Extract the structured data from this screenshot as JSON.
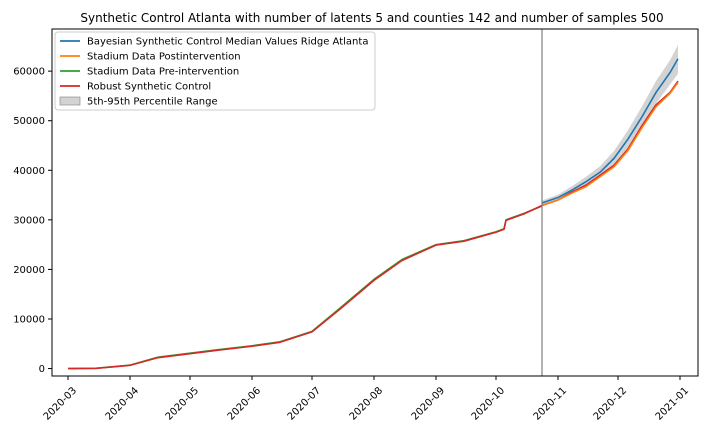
{
  "chart_data": {
    "type": "line",
    "title": "Synthetic Control Atlanta with number of latents 5 and counties 142 and number of samples 500",
    "xlabel": "",
    "ylabel": "",
    "x_range": [
      "2020-02-22",
      "2021-01-10"
    ],
    "ylim": [
      -1500,
      68500
    ],
    "grid": false,
    "legend_position": "top-left",
    "x_ticks": [
      "2020-03",
      "2020-04",
      "2020-05",
      "2020-06",
      "2020-07",
      "2020-08",
      "2020-09",
      "2020-10",
      "2020-11",
      "2020-12",
      "2021-01"
    ],
    "x_tick_dates": [
      "2020-03-01",
      "2020-04-01",
      "2020-05-01",
      "2020-06-01",
      "2020-07-01",
      "2020-08-01",
      "2020-09-01",
      "2020-10-01",
      "2020-11-01",
      "2020-12-01",
      "2021-01-01"
    ],
    "y_ticks": [
      0,
      10000,
      20000,
      30000,
      40000,
      50000,
      60000
    ],
    "intervention_date": "2020-10-24",
    "series": [
      {
        "name": "Bayesian Synthetic Control Median Values Ridge Atlanta",
        "color": "#1f77b4",
        "x": [
          "2020-10-24",
          "2020-11-01",
          "2020-11-08",
          "2020-11-15",
          "2020-11-22",
          "2020-11-29",
          "2020-12-06",
          "2020-12-13",
          "2020-12-20",
          "2020-12-27",
          "2020-12-31"
        ],
        "y": [
          33400,
          34500,
          36000,
          37700,
          39600,
          42400,
          46300,
          50800,
          55700,
          59700,
          62500
        ]
      },
      {
        "name": "Stadium Data Postintervention",
        "color": "#ff7f0e",
        "x": [
          "2020-10-24",
          "2020-11-01",
          "2020-11-08",
          "2020-11-15",
          "2020-11-22",
          "2020-11-29",
          "2020-12-06",
          "2020-12-13",
          "2020-12-20",
          "2020-12-27",
          "2020-12-31"
        ],
        "y": [
          32900,
          34000,
          35400,
          36700,
          38700,
          40700,
          44000,
          48600,
          52800,
          55500,
          57700
        ]
      },
      {
        "name": "Stadium Data Pre-intervention",
        "color": "#2ca02c",
        "x": [
          "2020-03-01",
          "2020-03-15",
          "2020-04-01",
          "2020-04-15",
          "2020-05-01",
          "2020-05-15",
          "2020-06-01",
          "2020-06-15",
          "2020-07-01",
          "2020-07-15",
          "2020-08-01",
          "2020-08-15",
          "2020-09-01",
          "2020-09-15",
          "2020-10-01",
          "2020-10-05",
          "2020-10-06",
          "2020-10-15",
          "2020-10-24"
        ],
        "y": [
          0,
          50,
          700,
          2300,
          3100,
          3800,
          4600,
          5400,
          7500,
          12200,
          18000,
          22000,
          25000,
          25800,
          27600,
          28200,
          30000,
          31300,
          32800
        ]
      },
      {
        "name": "Robust Synthetic Control",
        "color": "#d62728",
        "x": [
          "2020-03-01",
          "2020-03-15",
          "2020-04-01",
          "2020-04-15",
          "2020-05-01",
          "2020-05-15",
          "2020-06-01",
          "2020-06-15",
          "2020-07-01",
          "2020-07-15",
          "2020-08-01",
          "2020-08-15",
          "2020-09-01",
          "2020-09-15",
          "2020-10-01",
          "2020-10-05",
          "2020-10-06",
          "2020-10-15",
          "2020-10-24",
          "2020-11-01",
          "2020-11-08",
          "2020-11-15",
          "2020-11-22",
          "2020-11-29",
          "2020-12-06",
          "2020-12-13",
          "2020-12-20",
          "2020-12-27",
          "2020-12-31"
        ],
        "y": [
          0,
          50,
          650,
          2200,
          3000,
          3700,
          4500,
          5300,
          7400,
          12000,
          17800,
          21800,
          24900,
          25700,
          27500,
          28100,
          29900,
          31200,
          32900,
          34000,
          35600,
          37000,
          39000,
          41000,
          44300,
          49000,
          53200,
          55700,
          58000
        ]
      }
    ],
    "band": {
      "name": "5th-95th Percentile Range",
      "color": "#808080",
      "x": [
        "2020-10-24",
        "2020-11-01",
        "2020-11-08",
        "2020-11-15",
        "2020-11-22",
        "2020-11-29",
        "2020-12-06",
        "2020-12-13",
        "2020-12-20",
        "2020-12-27",
        "2020-12-31"
      ],
      "lower": [
        33000,
        34000,
        35300,
        36800,
        38500,
        41000,
        44500,
        48800,
        53500,
        57300,
        59500
      ],
      "upper": [
        33900,
        35100,
        36800,
        38700,
        40800,
        43900,
        48100,
        52900,
        58000,
        62200,
        65300
      ]
    }
  }
}
